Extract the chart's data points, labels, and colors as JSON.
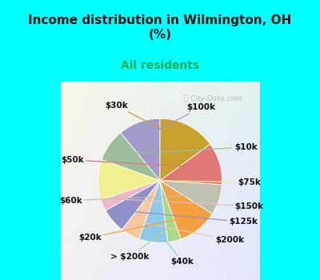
{
  "title": "Income distribution in Wilmington, OH\n(%)",
  "subtitle": "All residents",
  "watermark": "City-Data.com",
  "labels": [
    "$100k",
    "$10k",
    "$75k",
    "$150k",
    "$125k",
    "$200k",
    "$40k",
    "> $200k",
    "$20k",
    "$60k",
    "$50k",
    "$30k"
  ],
  "values": [
    11.0,
    8.5,
    10.5,
    3.0,
    6.5,
    5.0,
    7.5,
    3.5,
    10.5,
    8.0,
    11.0,
    15.0
  ],
  "colors": [
    "#a09bc8",
    "#9abf9a",
    "#f0f090",
    "#f0b8c8",
    "#9090c8",
    "#f5c8a0",
    "#90c8e8",
    "#a8d888",
    "#f5a040",
    "#c0c0b0",
    "#e07878",
    "#c8a030"
  ],
  "startangle": 90,
  "label_fontsize": 7.5,
  "figsize": [
    4.0,
    3.5
  ],
  "dpi": 100,
  "bg_top_color": "#00ffff",
  "bg_chart_color_tl": "#e8f8f0",
  "bg_chart_color_br": "#d0e8f8",
  "title_fontsize": 11,
  "subtitle_fontsize": 10,
  "subtitle_color": "#22aa55",
  "title_color": "#111111"
}
